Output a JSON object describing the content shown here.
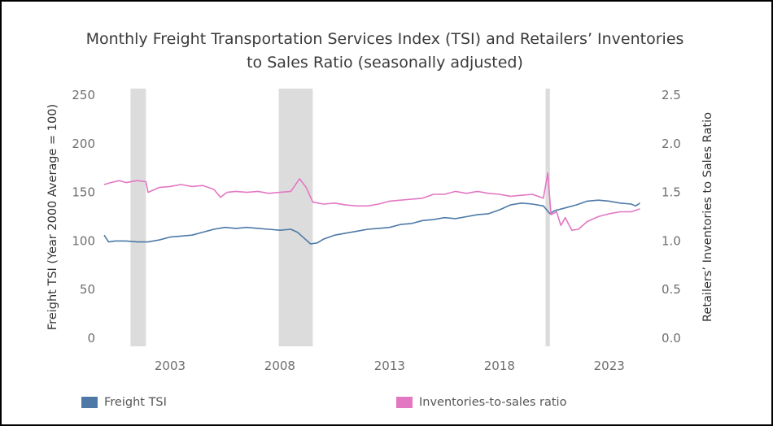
{
  "chart_data": {
    "type": "line",
    "title": [
      "Monthly Freight Transportation Services Index (TSI) and Retailers’ Inventories",
      "to Sales Ratio (seasonally adjusted)"
    ],
    "y_left_label": "Freight TSI (Year 2000 Average = 100)",
    "y_right_label": "Retailers’ Inventories to Sales Ratio",
    "y_left_ticks": [
      "0",
      "50",
      "100",
      "150",
      "200",
      "250"
    ],
    "y_right_ticks": [
      "0.0",
      "0.5",
      "1.0",
      "1.5",
      "2.0",
      "2.5"
    ],
    "ylim_left": [
      0,
      250
    ],
    "ylim_right": [
      0,
      2.5
    ],
    "x_ticks": [
      "2003",
      "2008",
      "2013",
      "2018",
      "2023"
    ],
    "xlim": [
      2000.0,
      2024.9
    ],
    "recession_shading": [
      [
        2001.2,
        2001.9
      ],
      [
        2007.95,
        2009.5
      ],
      [
        2020.1,
        2020.3
      ]
    ],
    "colors": {
      "tsi": "#4e79a7",
      "ratio": "#e377c2",
      "shade": "#dcdcdc"
    },
    "series": [
      {
        "name": "Freight TSI",
        "axis": "left",
        "points": [
          [
            2000.0,
            106
          ],
          [
            2000.2,
            99
          ],
          [
            2000.5,
            100
          ],
          [
            2001.0,
            100
          ],
          [
            2001.5,
            99
          ],
          [
            2002.0,
            99
          ],
          [
            2002.5,
            101
          ],
          [
            2003.0,
            104
          ],
          [
            2003.5,
            105
          ],
          [
            2004.0,
            106
          ],
          [
            2004.5,
            109
          ],
          [
            2005.0,
            112
          ],
          [
            2005.5,
            114
          ],
          [
            2006.0,
            113
          ],
          [
            2006.5,
            114
          ],
          [
            2007.0,
            113
          ],
          [
            2007.5,
            112
          ],
          [
            2008.0,
            111
          ],
          [
            2008.5,
            112
          ],
          [
            2008.8,
            109
          ],
          [
            2009.1,
            103
          ],
          [
            2009.4,
            97
          ],
          [
            2009.7,
            98
          ],
          [
            2010.0,
            102
          ],
          [
            2010.5,
            106
          ],
          [
            2011.0,
            108
          ],
          [
            2011.5,
            110
          ],
          [
            2012.0,
            112
          ],
          [
            2012.5,
            113
          ],
          [
            2013.0,
            114
          ],
          [
            2013.5,
            117
          ],
          [
            2014.0,
            118
          ],
          [
            2014.5,
            121
          ],
          [
            2015.0,
            122
          ],
          [
            2015.5,
            124
          ],
          [
            2016.0,
            123
          ],
          [
            2016.5,
            125
          ],
          [
            2017.0,
            127
          ],
          [
            2017.5,
            128
          ],
          [
            2018.0,
            132
          ],
          [
            2018.5,
            137
          ],
          [
            2019.0,
            139
          ],
          [
            2019.5,
            138
          ],
          [
            2020.0,
            136
          ],
          [
            2020.3,
            128
          ],
          [
            2020.5,
            131
          ],
          [
            2021.0,
            134
          ],
          [
            2021.5,
            137
          ],
          [
            2022.0,
            141
          ],
          [
            2022.5,
            142
          ],
          [
            2023.0,
            141
          ],
          [
            2023.5,
            139
          ],
          [
            2024.0,
            138
          ],
          [
            2024.2,
            136
          ],
          [
            2024.4,
            139
          ]
        ]
      },
      {
        "name": "Inventories-to-sales ratio",
        "axis": "right",
        "points": [
          [
            2000.0,
            1.58
          ],
          [
            2000.3,
            1.6
          ],
          [
            2000.7,
            1.62
          ],
          [
            2001.0,
            1.6
          ],
          [
            2001.5,
            1.62
          ],
          [
            2001.9,
            1.61
          ],
          [
            2002.0,
            1.5
          ],
          [
            2002.5,
            1.55
          ],
          [
            2003.0,
            1.56
          ],
          [
            2003.5,
            1.58
          ],
          [
            2004.0,
            1.56
          ],
          [
            2004.5,
            1.57
          ],
          [
            2005.0,
            1.53
          ],
          [
            2005.3,
            1.45
          ],
          [
            2005.6,
            1.5
          ],
          [
            2006.0,
            1.51
          ],
          [
            2006.5,
            1.5
          ],
          [
            2007.0,
            1.51
          ],
          [
            2007.5,
            1.49
          ],
          [
            2008.0,
            1.5
          ],
          [
            2008.5,
            1.51
          ],
          [
            2008.9,
            1.64
          ],
          [
            2009.2,
            1.55
          ],
          [
            2009.5,
            1.4
          ],
          [
            2010.0,
            1.38
          ],
          [
            2010.5,
            1.39
          ],
          [
            2011.0,
            1.37
          ],
          [
            2011.5,
            1.36
          ],
          [
            2012.0,
            1.36
          ],
          [
            2012.5,
            1.38
          ],
          [
            2013.0,
            1.41
          ],
          [
            2013.5,
            1.42
          ],
          [
            2014.0,
            1.43
          ],
          [
            2014.5,
            1.44
          ],
          [
            2015.0,
            1.48
          ],
          [
            2015.5,
            1.48
          ],
          [
            2016.0,
            1.51
          ],
          [
            2016.5,
            1.49
          ],
          [
            2017.0,
            1.51
          ],
          [
            2017.5,
            1.49
          ],
          [
            2018.0,
            1.48
          ],
          [
            2018.5,
            1.46
          ],
          [
            2019.0,
            1.47
          ],
          [
            2019.5,
            1.48
          ],
          [
            2020.0,
            1.44
          ],
          [
            2020.2,
            1.7
          ],
          [
            2020.35,
            1.27
          ],
          [
            2020.6,
            1.3
          ],
          [
            2020.8,
            1.16
          ],
          [
            2021.0,
            1.24
          ],
          [
            2021.3,
            1.11
          ],
          [
            2021.6,
            1.12
          ],
          [
            2022.0,
            1.2
          ],
          [
            2022.5,
            1.25
          ],
          [
            2023.0,
            1.28
          ],
          [
            2023.5,
            1.3
          ],
          [
            2024.0,
            1.3
          ],
          [
            2024.4,
            1.33
          ]
        ]
      }
    ]
  },
  "legend": {
    "tsi_label": "Freight TSI",
    "ratio_label": "Inventories-to-sales ratio"
  }
}
